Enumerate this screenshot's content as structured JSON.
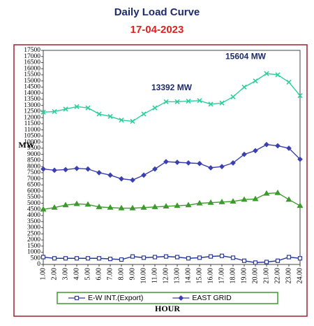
{
  "chart_data": {
    "type": "line",
    "title": "Daily Load Curve",
    "subtitle": "17-04-2023",
    "x_label": "HOUR",
    "y_label": "MW",
    "categories": [
      "1.00",
      "2.00",
      "3.00",
      "4.00",
      "5.00",
      "6.00",
      "7.00",
      "8.00",
      "9.00",
      "10.00",
      "11.00",
      "12.00",
      "13.00",
      "14.00",
      "15.00",
      "16.00",
      "17.00",
      "18.00",
      "19.00",
      "20.00",
      "21.00",
      "22.00",
      "23.00",
      "24.00"
    ],
    "ylim": [
      0,
      17500
    ],
    "yticks": [
      0,
      500,
      1000,
      1500,
      2000,
      2500,
      3000,
      3500,
      4000,
      4500,
      5000,
      5500,
      6000,
      6500,
      7000,
      7500,
      8000,
      8500,
      9000,
      9500,
      10000,
      10500,
      11000,
      11500,
      12000,
      12500,
      13000,
      13500,
      14000,
      14500,
      15000,
      15500,
      16000,
      16500,
      17000,
      17500
    ],
    "annotations": [
      {
        "text": "13392 MW"
      },
      {
        "text": "15604 MW"
      }
    ],
    "series": [
      {
        "color": "#2ccf9c",
        "marker": "x",
        "values": [
          12450,
          12500,
          12700,
          12900,
          12800,
          12300,
          12100,
          11800,
          11700,
          12300,
          12800,
          13300,
          13300,
          13350,
          13392,
          13100,
          13200,
          13700,
          14500,
          15000,
          15604,
          15500,
          14900,
          13800
        ]
      },
      {
        "name": "EAST GRID",
        "color": "#3b3fb0",
        "marker": "diamond",
        "values": [
          7800,
          7700,
          7750,
          7850,
          7800,
          7500,
          7300,
          7000,
          6900,
          7300,
          7800,
          8400,
          8350,
          8300,
          8250,
          7900,
          8000,
          8300,
          9000,
          9300,
          9800,
          9700,
          9500,
          8600
        ]
      },
      {
        "color": "#3d9a2c",
        "marker": "triangle",
        "values": [
          4500,
          4650,
          4850,
          4950,
          4900,
          4700,
          4650,
          4600,
          4600,
          4650,
          4700,
          4750,
          4800,
          4850,
          5000,
          5050,
          5100,
          5150,
          5300,
          5350,
          5800,
          5850,
          5300,
          4800
        ]
      },
      {
        "name": "E-W INT.(Export)",
        "color": "#2a3a9a",
        "marker": "square",
        "values": [
          600,
          500,
          500,
          500,
          500,
          500,
          450,
          400,
          650,
          550,
          600,
          650,
          600,
          500,
          550,
          650,
          700,
          550,
          300,
          150,
          200,
          300,
          600,
          500
        ]
      }
    ]
  }
}
